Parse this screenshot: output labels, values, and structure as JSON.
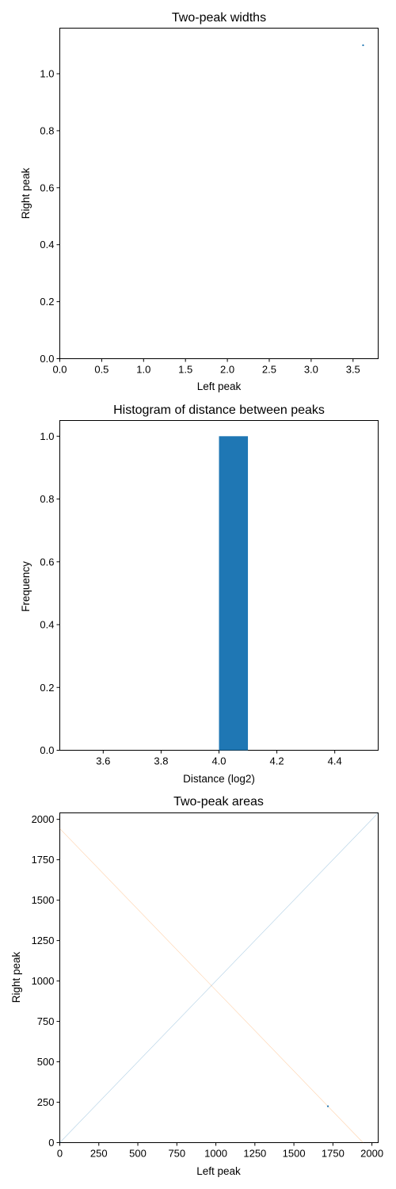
{
  "chart_data": [
    {
      "type": "scatter",
      "title": "Two-peak widths",
      "xlabel": "Left peak",
      "ylabel": "Right peak",
      "xlim": [
        0,
        3.8
      ],
      "ylim": [
        0,
        1.16
      ],
      "xticks": [
        0,
        0.5,
        1,
        1.5,
        2,
        2.5,
        3,
        3.5
      ],
      "xtick_labels": [
        "0.0",
        "0.5",
        "1.0",
        "1.5",
        "2.0",
        "2.5",
        "3.0",
        "3.5"
      ],
      "yticks": [
        0,
        0.2,
        0.4,
        0.6,
        0.8,
        1.0
      ],
      "ytick_labels": [
        "0.0",
        "0.2",
        "0.4",
        "0.6",
        "0.8",
        "1.0"
      ],
      "grid": false,
      "series": [
        {
          "color": "#1f77b4",
          "points": [
            [
              3.62,
              1.1
            ]
          ]
        }
      ]
    },
    {
      "type": "bar",
      "title": "Histogram of distance between peaks",
      "xlabel": "Distance (log2)",
      "ylabel": "Frequency",
      "xlim": [
        3.45,
        4.55
      ],
      "ylim": [
        0,
        1.05
      ],
      "xticks": [
        3.6,
        3.8,
        4.0,
        4.2,
        4.4
      ],
      "xtick_labels": [
        "3.6",
        "3.8",
        "4.0",
        "4.2",
        "4.4"
      ],
      "yticks": [
        0,
        0.2,
        0.4,
        0.6,
        0.8,
        1.0
      ],
      "ytick_labels": [
        "0.0",
        "0.2",
        "0.4",
        "0.6",
        "0.8",
        "1.0"
      ],
      "grid": false,
      "bins": [
        {
          "x0": 4.0,
          "x1": 4.1,
          "value": 1,
          "color": "#1f77b4"
        }
      ]
    },
    {
      "type": "scatter",
      "title": "Two-peak areas",
      "xlabel": "Left peak",
      "ylabel": "Right peak",
      "xlim": [
        0,
        2040
      ],
      "ylim": [
        0,
        2040
      ],
      "xticks": [
        0,
        250,
        500,
        750,
        1000,
        1250,
        1500,
        1750,
        2000
      ],
      "xtick_labels": [
        "0",
        "250",
        "500",
        "750",
        "1000",
        "1250",
        "1500",
        "1750",
        "2000"
      ],
      "yticks": [
        0,
        250,
        500,
        750,
        1000,
        1250,
        1500,
        1750,
        2000
      ],
      "ytick_labels": [
        "0",
        "250",
        "500",
        "750",
        "1000",
        "1250",
        "1500",
        "1750",
        "2000"
      ],
      "grid": false,
      "series": [
        {
          "color": "#1f77b4",
          "points": [
            [
              1718,
              225
            ]
          ]
        }
      ],
      "reference_lines": [
        {
          "color": "#1f77b4",
          "from": [
            0,
            0
          ],
          "to": [
            2040,
            2040
          ]
        },
        {
          "color": "#ff7f0e",
          "from": [
            0,
            1943
          ],
          "to": [
            1943,
            0
          ]
        }
      ]
    }
  ]
}
